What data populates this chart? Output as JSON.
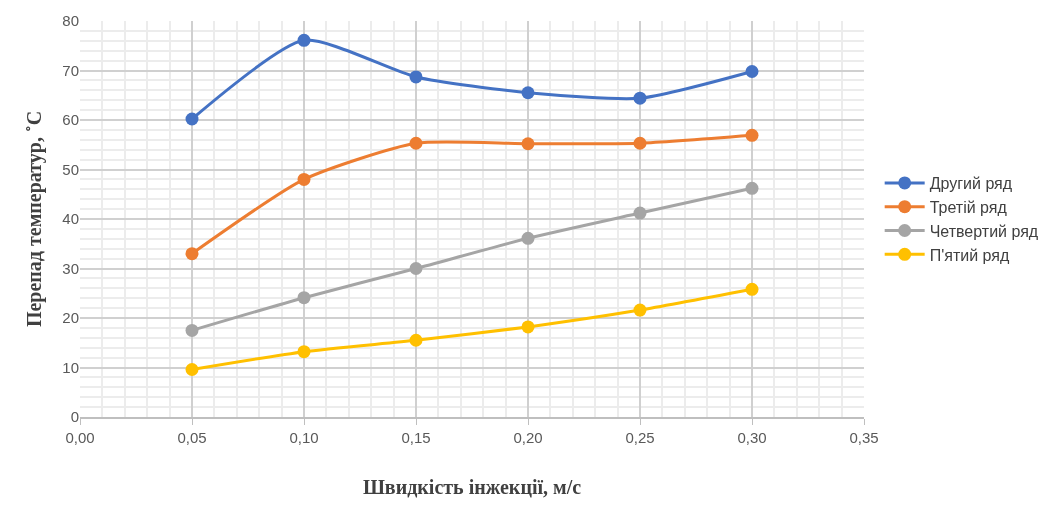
{
  "chart_data": {
    "type": "line",
    "xlabel": "Швидкість інжекції, м/с",
    "ylabel": "Перепад температур, ˚С",
    "x": [
      0.05,
      0.1,
      0.15,
      0.2,
      0.25,
      0.3
    ],
    "series": [
      {
        "name": "Другий ряд",
        "color": "#4472c4",
        "values": [
          60.2,
          76.1,
          68.7,
          65.5,
          64.4,
          69.8
        ]
      },
      {
        "name": "Третій ряд",
        "color": "#ed7d31",
        "values": [
          33.0,
          48.0,
          55.3,
          55.2,
          55.3,
          56.9
        ]
      },
      {
        "name": "Четвертий ряд",
        "color": "#a5a5a5",
        "values": [
          17.5,
          24.1,
          30.0,
          36.1,
          41.2,
          46.2
        ]
      },
      {
        "name": "П'ятий ряд",
        "color": "#ffc000",
        "values": [
          9.6,
          13.2,
          15.5,
          18.2,
          21.6,
          25.8
        ]
      }
    ],
    "xlim": [
      0,
      0.35
    ],
    "xticks": [
      {
        "value": 0,
        "label": "0,00"
      },
      {
        "value": 0.05,
        "label": "0,05"
      },
      {
        "value": 0.1,
        "label": "0,10"
      },
      {
        "value": 0.15,
        "label": "0,15"
      },
      {
        "value": 0.2,
        "label": "0,20"
      },
      {
        "value": 0.25,
        "label": "0,25"
      },
      {
        "value": 0.3,
        "label": "0,30"
      },
      {
        "value": 0.35,
        "label": "0,35"
      }
    ],
    "ylim": [
      0,
      80
    ],
    "yticks": [
      0,
      10,
      20,
      30,
      40,
      50,
      60,
      70,
      80
    ],
    "grid": true,
    "legend": "right",
    "marker": "circle",
    "line_style": "solid"
  }
}
